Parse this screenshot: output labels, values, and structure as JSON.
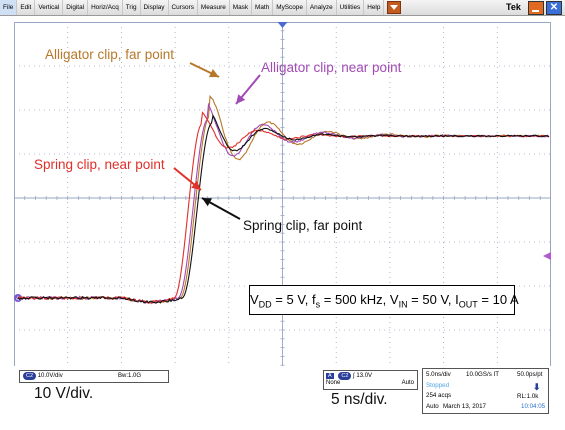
{
  "menu": {
    "items": [
      "File",
      "Edit",
      "Vertical",
      "Digital",
      "Horiz/Acq",
      "Trig",
      "Display",
      "Cursors",
      "Measure",
      "Mask",
      "Math",
      "MyScope",
      "Analyze",
      "Utilities",
      "Help"
    ],
    "brand": "Tek"
  },
  "colors": {
    "alligator_far": "#b8782a",
    "alligator_near": "#a24bb5",
    "spring_near": "#e0302a",
    "spring_far": "#111111",
    "grid": "#9aa7c2",
    "panel_badge": "#2a3f9a"
  },
  "annotations": {
    "alligator_far": "Alligator clip, far point",
    "alligator_near": "Alligator clip, near point",
    "spring_near": "Spring clip, near point",
    "spring_far": "Spring clip, far point"
  },
  "conditions": {
    "vdd_sym": "V",
    "vdd_sub": "DD",
    "vdd_val": " = 5 V, ",
    "fs_sym": "f",
    "fs_sub": "s",
    "fs_val": " = 500 kHz, ",
    "vin_sym": "V",
    "vin_sub": "IN",
    "vin_val": " = 50 V, ",
    "iout_sym": "I",
    "iout_sub": "OUT",
    "iout_val": " = 10 A"
  },
  "channel": {
    "badge": "C2",
    "scale": "10.0V/div",
    "bandwidth": "Bw:1.0G"
  },
  "trigger": {
    "source_badge": "A",
    "channel_badge": "C2",
    "slope_level": "∫ 13.0V",
    "coupling": "None",
    "mode": "Auto"
  },
  "timebase": {
    "horizontal": "5.0ns/div",
    "rate": "10.0GS/s IT",
    "resolution": "50.0ps/pt",
    "status": "Stopped",
    "acqs": "254 acqs",
    "record_length": "RL:1.0k",
    "mode": "Auto",
    "date": "March 13, 2017",
    "time": "10:04:05"
  },
  "labels": {
    "volt_div": "10 V/div.",
    "time_div": "5 ns/div."
  },
  "markers": {
    "channel_marker": "4"
  }
}
